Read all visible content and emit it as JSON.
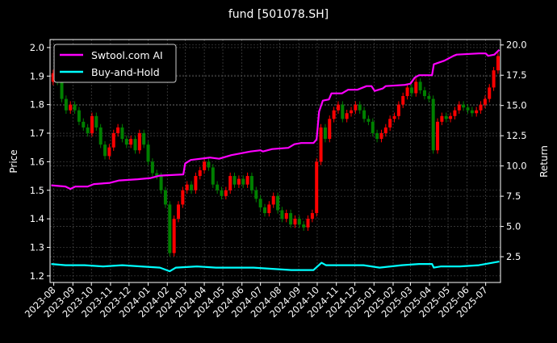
{
  "chart_data": {
    "type": "candlestick+line",
    "title": "fund [501078.SH]",
    "ylabel_left": "Price",
    "ylabel_right": "Return",
    "xlim": [
      "2023-07-26",
      "2025-07-25"
    ],
    "ylim_left": [
      1.177,
      2.028
    ],
    "ylim_right": [
      0.37,
      20.45
    ],
    "grid": true,
    "legend_position": "upper-left",
    "x_ticks": [
      "2023-08",
      "2023-09",
      "2023-10",
      "2023-11",
      "2023-12",
      "2024-01",
      "2024-02",
      "2024-03",
      "2024-04",
      "2024-05",
      "2024-06",
      "2024-07",
      "2024-08",
      "2024-09",
      "2024-10",
      "2024-11",
      "2024-12",
      "2025-01",
      "2025-02",
      "2025-03",
      "2025-04",
      "2025-05",
      "2025-06",
      "2025-07"
    ],
    "y_ticks_left": [
      "1.2",
      "1.3",
      "1.4",
      "1.5",
      "1.6",
      "1.7",
      "1.8",
      "1.9",
      "2.0"
    ],
    "y_ticks_right": [
      "2.5",
      "5.0",
      "7.5",
      "10.0",
      "12.5",
      "15.0",
      "17.5",
      "20.0"
    ],
    "colors": {
      "up": "#ff0000",
      "down": "#008000",
      "strategy": "#ff00ff",
      "buy_hold": "#00ffff",
      "background": "#000000",
      "text": "#ffffff"
    },
    "price": {
      "dates": [
        "2023-07-31",
        "2023-08-07",
        "2023-08-14",
        "2023-08-21",
        "2023-08-28",
        "2023-09-04",
        "2023-09-11",
        "2023-09-18",
        "2023-09-25",
        "2023-10-02",
        "2023-10-09",
        "2023-10-16",
        "2023-10-23",
        "2023-10-30",
        "2023-11-06",
        "2023-11-13",
        "2023-11-20",
        "2023-11-27",
        "2023-12-04",
        "2023-12-11",
        "2023-12-18",
        "2023-12-25",
        "2024-01-01",
        "2024-01-08",
        "2024-01-15",
        "2024-01-22",
        "2024-01-29",
        "2024-02-05",
        "2024-02-12",
        "2024-02-19",
        "2024-02-26",
        "2024-03-04",
        "2024-03-11",
        "2024-03-18",
        "2024-03-25",
        "2024-04-01",
        "2024-04-08",
        "2024-04-15",
        "2024-04-22",
        "2024-04-29",
        "2024-05-06",
        "2024-05-13",
        "2024-05-20",
        "2024-05-27",
        "2024-06-03",
        "2024-06-10",
        "2024-06-17",
        "2024-06-24",
        "2024-07-01",
        "2024-07-08",
        "2024-07-15",
        "2024-07-22",
        "2024-07-29",
        "2024-08-05",
        "2024-08-12",
        "2024-08-19",
        "2024-08-26",
        "2024-09-02",
        "2024-09-09",
        "2024-09-16",
        "2024-09-23",
        "2024-09-30",
        "2024-10-07",
        "2024-10-14",
        "2024-10-21",
        "2024-10-28",
        "2024-11-04",
        "2024-11-11",
        "2024-11-18",
        "2024-11-25",
        "2024-12-02",
        "2024-12-09",
        "2024-12-16",
        "2024-12-23",
        "2024-12-30",
        "2025-01-06",
        "2025-01-13",
        "2025-01-20",
        "2025-01-27",
        "2025-02-03",
        "2025-02-10",
        "2025-02-17",
        "2025-02-24",
        "2025-03-03",
        "2025-03-10",
        "2025-03-17",
        "2025-03-24",
        "2025-03-31",
        "2025-04-07",
        "2025-04-14",
        "2025-04-21",
        "2025-04-28",
        "2025-05-05",
        "2025-05-12",
        "2025-05-19",
        "2025-05-26",
        "2025-06-02",
        "2025-06-09",
        "2025-06-16",
        "2025-06-23",
        "2025-06-30",
        "2025-07-07",
        "2025-07-14",
        "2025-07-21"
      ],
      "open_first": 1.88,
      "close": [
        1.91,
        1.88,
        1.82,
        1.78,
        1.8,
        1.78,
        1.74,
        1.72,
        1.7,
        1.76,
        1.72,
        1.66,
        1.62,
        1.65,
        1.7,
        1.72,
        1.68,
        1.66,
        1.68,
        1.64,
        1.7,
        1.66,
        1.6,
        1.56,
        1.55,
        1.5,
        1.45,
        1.28,
        1.4,
        1.45,
        1.5,
        1.52,
        1.5,
        1.55,
        1.57,
        1.6,
        1.58,
        1.52,
        1.5,
        1.48,
        1.5,
        1.55,
        1.52,
        1.54,
        1.52,
        1.55,
        1.5,
        1.47,
        1.44,
        1.42,
        1.45,
        1.48,
        1.43,
        1.4,
        1.42,
        1.38,
        1.4,
        1.38,
        1.37,
        1.4,
        1.42,
        1.6,
        1.72,
        1.68,
        1.75,
        1.78,
        1.8,
        1.75,
        1.77,
        1.78,
        1.8,
        1.78,
        1.75,
        1.74,
        1.7,
        1.68,
        1.7,
        1.72,
        1.75,
        1.76,
        1.8,
        1.83,
        1.86,
        1.84,
        1.88,
        1.85,
        1.83,
        1.82,
        1.64,
        1.74,
        1.76,
        1.75,
        1.76,
        1.78,
        1.8,
        1.79,
        1.78,
        1.77,
        1.78,
        1.8,
        1.82,
        1.86,
        1.92,
        1.97
      ]
    },
    "series": [
      {
        "name": "Swtool.com AI",
        "axis": "right",
        "points": [
          [
            "2023-07-28",
            8.4
          ],
          [
            "2023-08-20",
            8.3
          ],
          [
            "2023-08-28",
            8.1
          ],
          [
            "2023-09-05",
            8.3
          ],
          [
            "2023-09-25",
            8.3
          ],
          [
            "2023-10-05",
            8.5
          ],
          [
            "2023-10-31",
            8.6
          ],
          [
            "2023-11-15",
            8.8
          ],
          [
            "2023-12-15",
            8.9
          ],
          [
            "2024-01-05",
            9.0
          ],
          [
            "2024-01-20",
            9.2
          ],
          [
            "2024-02-27",
            9.3
          ],
          [
            "2024-03-01",
            10.2
          ],
          [
            "2024-03-10",
            10.5
          ],
          [
            "2024-04-10",
            10.7
          ],
          [
            "2024-04-25",
            10.6
          ],
          [
            "2024-05-15",
            10.9
          ],
          [
            "2024-06-15",
            11.2
          ],
          [
            "2024-07-01",
            11.3
          ],
          [
            "2024-07-05",
            11.2
          ],
          [
            "2024-07-20",
            11.4
          ],
          [
            "2024-08-15",
            11.5
          ],
          [
            "2024-08-25",
            11.8
          ],
          [
            "2024-09-05",
            11.9
          ],
          [
            "2024-09-25",
            11.9
          ],
          [
            "2024-09-30",
            12.2
          ],
          [
            "2024-10-04",
            14.5
          ],
          [
            "2024-10-10",
            15.4
          ],
          [
            "2024-10-20",
            15.5
          ],
          [
            "2024-10-24",
            16.0
          ],
          [
            "2024-11-10",
            16.0
          ],
          [
            "2024-11-20",
            16.3
          ],
          [
            "2024-12-05",
            16.3
          ],
          [
            "2024-12-20",
            16.6
          ],
          [
            "2024-12-28",
            16.6
          ],
          [
            "2025-01-02",
            16.2
          ],
          [
            "2025-01-15",
            16.4
          ],
          [
            "2025-01-20",
            16.6
          ],
          [
            "2025-02-20",
            16.7
          ],
          [
            "2025-03-01",
            16.8
          ],
          [
            "2025-03-08",
            17.3
          ],
          [
            "2025-03-15",
            17.5
          ],
          [
            "2025-04-05",
            17.5
          ],
          [
            "2025-04-08",
            18.4
          ],
          [
            "2025-04-25",
            18.7
          ],
          [
            "2025-05-10",
            19.1
          ],
          [
            "2025-05-15",
            19.2
          ],
          [
            "2025-06-20",
            19.3
          ],
          [
            "2025-07-01",
            19.3
          ],
          [
            "2025-07-05",
            19.1
          ],
          [
            "2025-07-15",
            19.2
          ],
          [
            "2025-07-23",
            19.6
          ]
        ]
      },
      {
        "name": "Buy-and-Hold",
        "axis": "right",
        "points": [
          [
            "2023-07-28",
            1.9
          ],
          [
            "2023-08-20",
            1.8
          ],
          [
            "2023-09-20",
            1.8
          ],
          [
            "2023-10-20",
            1.7
          ],
          [
            "2023-11-20",
            1.8
          ],
          [
            "2023-12-20",
            1.7
          ],
          [
            "2024-01-20",
            1.6
          ],
          [
            "2024-02-05",
            1.3
          ],
          [
            "2024-02-15",
            1.6
          ],
          [
            "2024-03-20",
            1.7
          ],
          [
            "2024-04-20",
            1.6
          ],
          [
            "2024-05-20",
            1.6
          ],
          [
            "2024-06-20",
            1.6
          ],
          [
            "2024-07-20",
            1.5
          ],
          [
            "2024-08-20",
            1.4
          ],
          [
            "2024-09-25",
            1.4
          ],
          [
            "2024-10-08",
            2.0
          ],
          [
            "2024-10-15",
            1.8
          ],
          [
            "2024-11-15",
            1.8
          ],
          [
            "2024-12-15",
            1.8
          ],
          [
            "2025-01-10",
            1.6
          ],
          [
            "2025-02-15",
            1.8
          ],
          [
            "2025-03-15",
            1.9
          ],
          [
            "2025-04-05",
            1.9
          ],
          [
            "2025-04-08",
            1.6
          ],
          [
            "2025-04-20",
            1.7
          ],
          [
            "2025-05-20",
            1.7
          ],
          [
            "2025-06-20",
            1.8
          ],
          [
            "2025-07-23",
            2.1
          ]
        ]
      }
    ]
  }
}
